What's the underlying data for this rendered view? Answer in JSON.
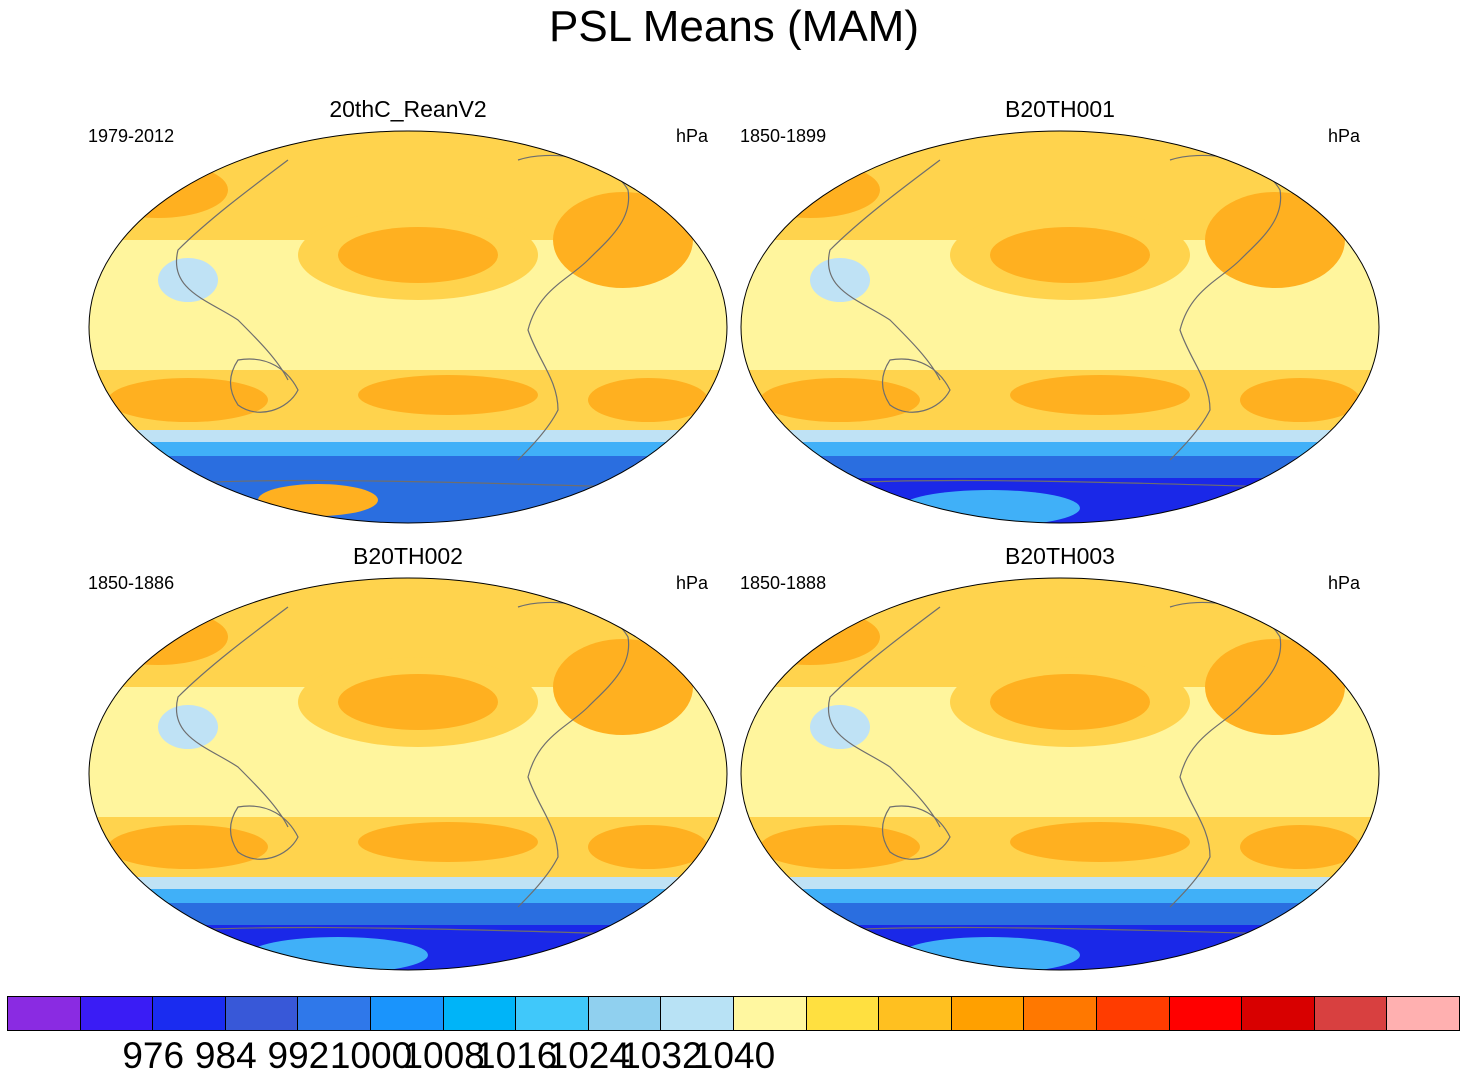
{
  "title": "PSL Means (MAM)",
  "panels": [
    {
      "name": "20thC_ReanV2",
      "years": "1979-2012",
      "units": "hPa"
    },
    {
      "name": "B20TH001",
      "years": "1850-1899",
      "units": "hPa"
    },
    {
      "name": "B20TH002",
      "years": "1850-1886",
      "units": "hPa"
    },
    {
      "name": "B20TH003",
      "years": "1850-1888",
      "units": "hPa"
    }
  ],
  "colorbar": {
    "colors": [
      "#8a2be2",
      "#3a1cf5",
      "#1a2cf0",
      "#3858d8",
      "#2f78ea",
      "#1a94fc",
      "#00b4f8",
      "#40c8fa",
      "#90d0ef",
      "#b8e2f5",
      "#fff7a0",
      "#ffe040",
      "#ffc020",
      "#ffa000",
      "#ff7800",
      "#ff3c00",
      "#ff0000",
      "#d80000",
      "#d84040",
      "#ffb0b0"
    ],
    "labels": [
      "976",
      "984",
      "992",
      "1000",
      "1008",
      "1016",
      "1024",
      "1032",
      "1040"
    ]
  },
  "palette": {
    "ocean_light": "#fff59d",
    "mid": "#ffd34d",
    "high": "#ffb020",
    "peak": "#ff9a10",
    "low1": "#bfe2f5",
    "low2": "#40b0f8",
    "low3": "#2a6ee0",
    "low4": "#1a28e8",
    "coast": "#6e6e6e"
  }
}
